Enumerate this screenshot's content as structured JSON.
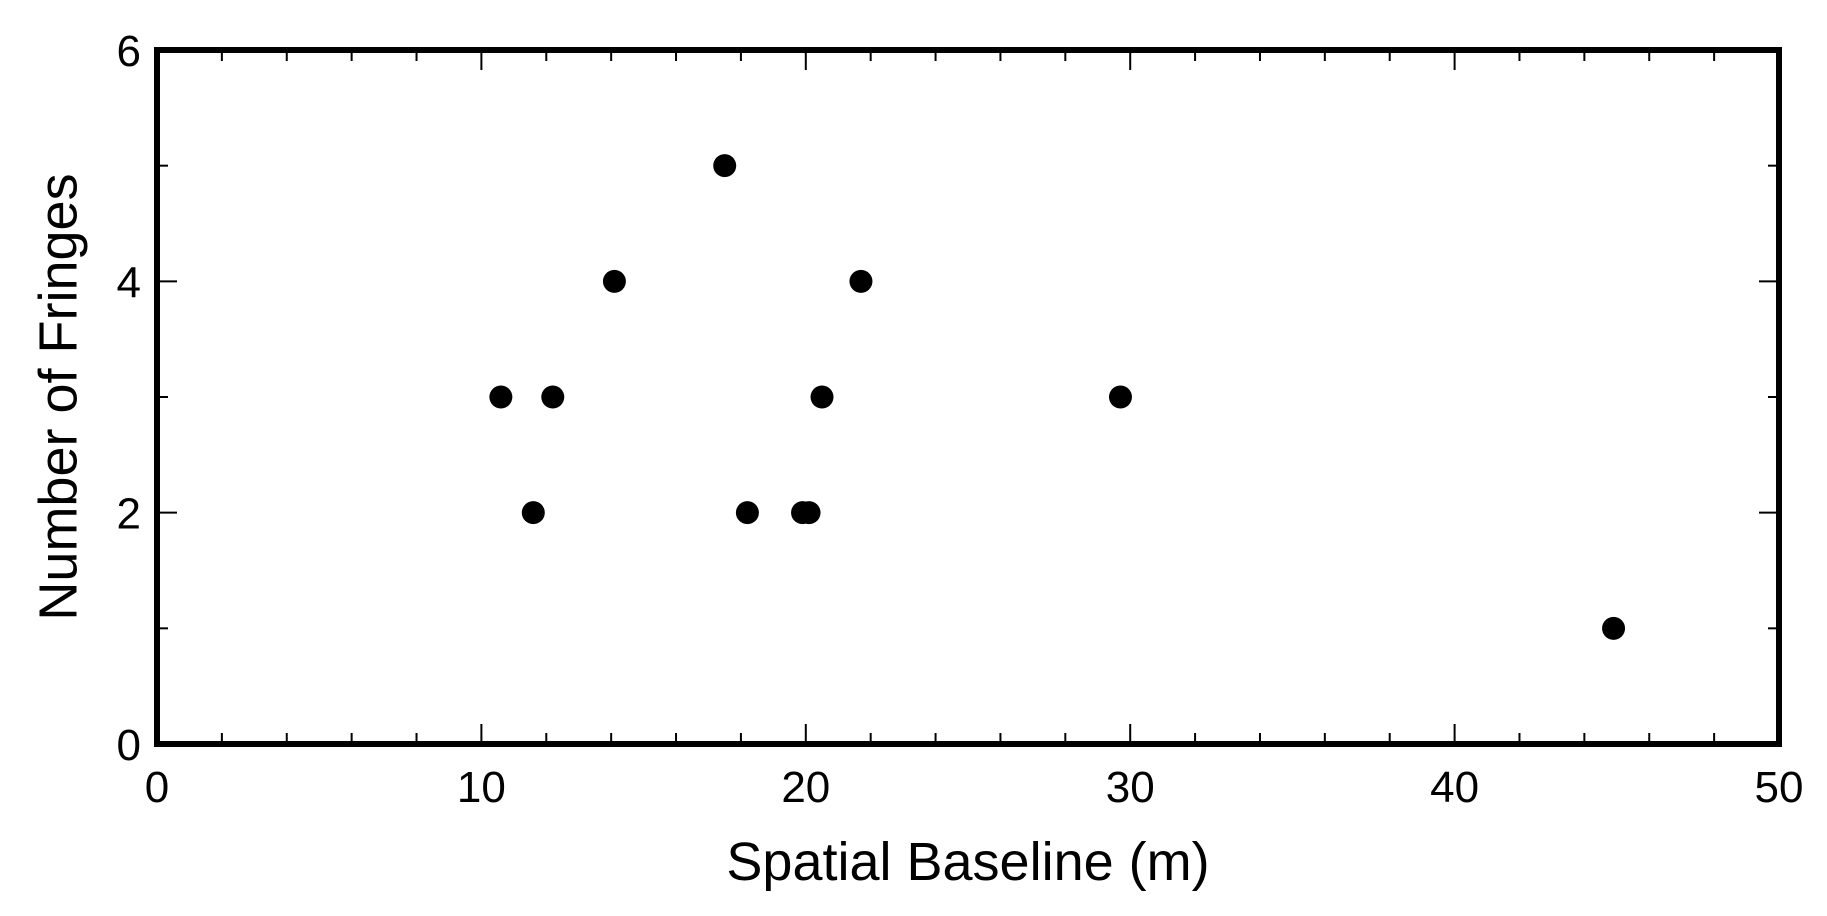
{
  "chart_data": {
    "type": "scatter",
    "title": "",
    "xlabel": "Spatial Baseline (m)",
    "ylabel": "Number of Fringes",
    "xlim": [
      0,
      50
    ],
    "ylim": [
      0,
      6
    ],
    "x_ticks": [
      0,
      10,
      20,
      30,
      40,
      50
    ],
    "y_ticks": [
      0,
      2,
      4,
      6
    ],
    "x_minor_step": 2,
    "y_minor_step": 1,
    "grid": false,
    "marker_color": "#000000",
    "points": [
      {
        "x": 10.6,
        "y": 3
      },
      {
        "x": 11.6,
        "y": 2
      },
      {
        "x": 12.2,
        "y": 3
      },
      {
        "x": 14.1,
        "y": 4
      },
      {
        "x": 17.5,
        "y": 5
      },
      {
        "x": 18.2,
        "y": 2
      },
      {
        "x": 19.9,
        "y": 2
      },
      {
        "x": 20.1,
        "y": 2
      },
      {
        "x": 20.5,
        "y": 3
      },
      {
        "x": 21.7,
        "y": 4
      },
      {
        "x": 29.7,
        "y": 3
      },
      {
        "x": 44.9,
        "y": 1
      }
    ]
  }
}
